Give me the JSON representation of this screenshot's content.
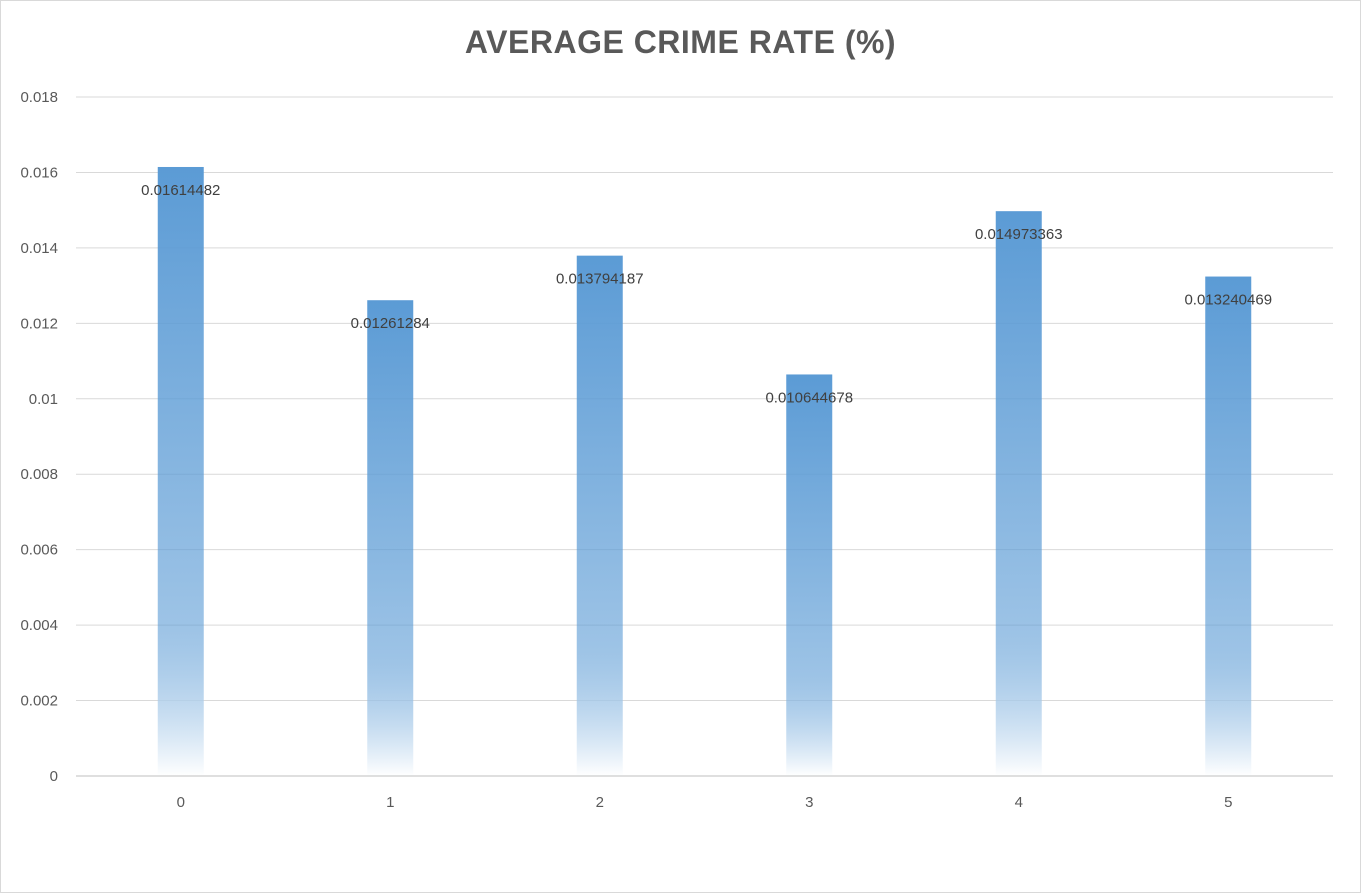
{
  "chart_data": {
    "type": "bar",
    "title": "AVERAGE CRIME RATE (%)",
    "xlabel": "",
    "ylabel": "",
    "categories": [
      "0",
      "1",
      "2",
      "3",
      "4",
      "5"
    ],
    "values": [
      0.01614482,
      0.01261284,
      0.013794187,
      0.010644678,
      0.014973363,
      0.013240469
    ],
    "data_labels": [
      "0.01614482",
      "0.01261284",
      "0.013794187",
      "0.010644678",
      "0.014973363",
      "0.013240469"
    ],
    "ylim": [
      0,
      0.018
    ],
    "y_ticks": [
      {
        "value": 0,
        "label": "0"
      },
      {
        "value": 0.002,
        "label": "0.002"
      },
      {
        "value": 0.004,
        "label": "0.004"
      },
      {
        "value": 0.006,
        "label": "0.006"
      },
      {
        "value": 0.008,
        "label": "0.008"
      },
      {
        "value": 0.01,
        "label": "0.01"
      },
      {
        "value": 0.012,
        "label": "0.012"
      },
      {
        "value": 0.014,
        "label": "0.014"
      },
      {
        "value": 0.016,
        "label": "0.016"
      },
      {
        "value": 0.018,
        "label": "0.018"
      }
    ],
    "grid": true,
    "legend": "none",
    "colors": {
      "bar": "#5b9bd5",
      "bar_fade": "#ffffff",
      "grid": "#d9d9d9",
      "text": "#595959",
      "data_label": "#404040"
    }
  }
}
